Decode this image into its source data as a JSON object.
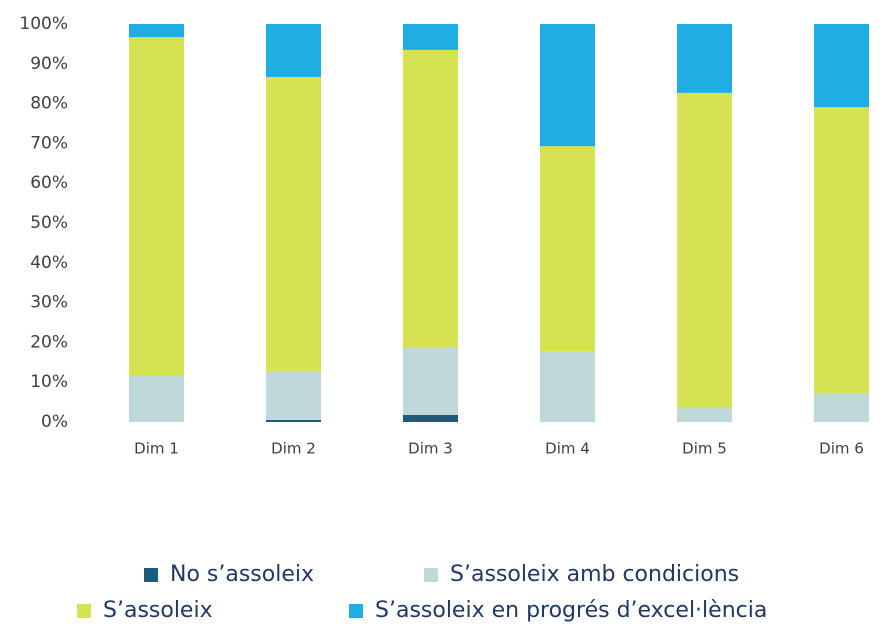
{
  "chart_data": {
    "type": "stacked_bar",
    "categories": [
      "Dim 1",
      "Dim 2",
      "Dim 3",
      "Dim 4",
      "Dim 5",
      "Dim 6"
    ],
    "series": [
      {
        "name": "No s’assoleix",
        "color": "#1f5a7a",
        "values": [
          0,
          0.5,
          1.8,
          0,
          0,
          0
        ]
      },
      {
        "name": "S’assoleix amb condicions",
        "color": "#bfd9da",
        "values": [
          11.8,
          12.1,
          16.8,
          17.8,
          3.5,
          7.3
        ]
      },
      {
        "name": "S’assoleix",
        "color": "#d5e352",
        "values": [
          84.9,
          74.1,
          74.9,
          51.5,
          79.2,
          71.8
        ]
      },
      {
        "name": "S’assoleix en progrés d’excel·lència",
        "color": "#1eaee3",
        "values": [
          3.3,
          13.3,
          6.5,
          30.7,
          17.3,
          20.9
        ]
      }
    ],
    "ylim": [
      0,
      100
    ],
    "yticks": [
      {
        "value": 0,
        "label": "0%"
      },
      {
        "value": 10,
        "label": "10%"
      },
      {
        "value": 20,
        "label": "20%"
      },
      {
        "value": 30,
        "label": "30%"
      },
      {
        "value": 40,
        "label": "40%"
      },
      {
        "value": 50,
        "label": "50%"
      },
      {
        "value": 60,
        "label": "60%"
      },
      {
        "value": 70,
        "label": "70%"
      },
      {
        "value": 80,
        "label": "80%"
      },
      {
        "value": 90,
        "label": "90%"
      },
      {
        "value": 100,
        "label": "100%"
      }
    ],
    "legend": "bottom"
  }
}
